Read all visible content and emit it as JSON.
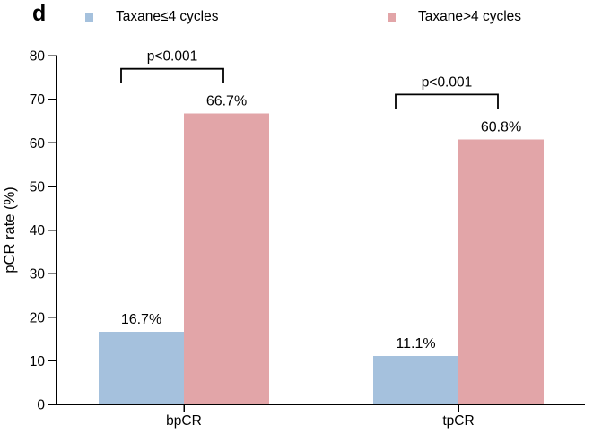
{
  "panel_label": "d",
  "legend": {
    "items": [
      {
        "label": "Taxane≤4 cycles",
        "color": "#A5C1DD"
      },
      {
        "label": "Taxane>4 cycles",
        "color": "#E2A5A8"
      }
    ]
  },
  "chart_data": {
    "type": "bar",
    "categories": [
      "bpCR",
      "tpCR"
    ],
    "series": [
      {
        "name": "Taxane≤4 cycles",
        "color": "#A5C1DD",
        "values": [
          16.7,
          11.1
        ],
        "labels": [
          "16.7%",
          "11.1%"
        ]
      },
      {
        "name": "Taxane>4 cycles",
        "color": "#E2A5A8",
        "values": [
          66.7,
          60.8
        ],
        "labels": [
          "66.7%",
          "60.8%"
        ]
      }
    ],
    "annotations": [
      {
        "category": "bpCR",
        "text": "p<0.001"
      },
      {
        "category": "tpCR",
        "text": "p<0.001"
      }
    ],
    "xlabel": "",
    "ylabel": "pCR rate (%)",
    "ylim": [
      0,
      80
    ],
    "yticks": [
      0,
      10,
      20,
      30,
      40,
      50,
      60,
      70,
      80
    ],
    "grid": false,
    "legend_position": "top",
    "axis_color": "#000000",
    "text_color": "#000000"
  }
}
